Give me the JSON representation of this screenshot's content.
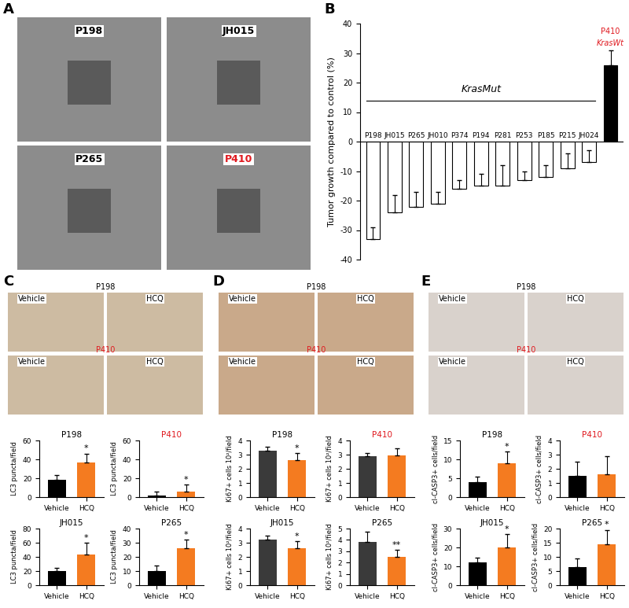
{
  "panel_labels": [
    "A",
    "B",
    "C",
    "D",
    "E"
  ],
  "images": [
    {
      "tiles": [
        "P198",
        "JH015",
        "P265",
        "P410"
      ]
    },
    {
      "rows": [
        {
          "left": "Vehicle",
          "name": "P198",
          "right": "HCQ"
        },
        {
          "left": "Vehicle",
          "name": "P410",
          "right": "HCQ"
        }
      ]
    },
    {
      "rows": [
        {
          "left": "Vehicle",
          "name": "P198",
          "right": "HCQ"
        },
        {
          "left": "Vehicle",
          "name": "P410",
          "right": "HCQ"
        }
      ]
    },
    {
      "rows": [
        {
          "left": "Vehicle",
          "name": "P198",
          "right": "HCQ"
        },
        {
          "left": "Vehicle",
          "name": "P410",
          "right": "HCQ"
        }
      ]
    }
  ],
  "chart_data": [
    {
      "type": "bar",
      "y_label": "Tumor growth compared to control (%)",
      "categories": [
        "P198",
        "JH015",
        "P265",
        "JH010",
        "P374",
        "P194",
        "P281",
        "P253",
        "P185",
        "P215",
        "JH024",
        "P410"
      ],
      "values": [
        -33,
        -24,
        -22,
        -21,
        -16,
        -15,
        -15,
        -13,
        -12,
        -9,
        -7,
        26
      ],
      "errors": [
        4,
        6,
        5,
        4,
        3,
        4,
        7,
        3,
        4,
        5,
        4,
        5
      ],
      "colors": [
        "#ffffff",
        "#ffffff",
        "#ffffff",
        "#ffffff",
        "#ffffff",
        "#ffffff",
        "#ffffff",
        "#ffffff",
        "#ffffff",
        "#ffffff",
        "#ffffff",
        "#000000"
      ],
      "ylim": [
        -40,
        40
      ],
      "yticks": [
        -40,
        -30,
        -20,
        -10,
        0,
        10,
        20,
        30,
        40
      ],
      "tick_labels": "y",
      "annotations": [
        {
          "text": "KrasMut"
        },
        {
          "text": "KrasWt"
        }
      ]
    },
    {
      "type": "bar",
      "title": "P198",
      "y_label": "LC3 puncta/field",
      "categories": [
        "Vehicle",
        "HCQ"
      ],
      "values": [
        18,
        37
      ],
      "errors": [
        5,
        9
      ],
      "colors": [
        "#000000",
        "#f47b20"
      ],
      "ylim": [
        0,
        60
      ],
      "yticks": [
        0,
        20,
        40,
        60
      ],
      "annotations": [
        {
          "text": "*",
          "category": "HCQ"
        }
      ]
    },
    {
      "type": "bar",
      "title": "P410",
      "y_label": "LC3 puncta/field",
      "categories": [
        "Vehicle",
        "HCQ"
      ],
      "values": [
        2,
        6
      ],
      "errors": [
        4,
        7
      ],
      "colors": [
        "#000000",
        "#f47b20"
      ],
      "ylim": [
        0,
        60
      ],
      "yticks": [
        0,
        20,
        40,
        60
      ],
      "annotations": [
        {
          "text": "*",
          "category": "HCQ"
        }
      ]
    },
    {
      "type": "bar",
      "title": "JH015",
      "y_label": "LC3 puncta/field",
      "categories": [
        "Vehicle",
        "HCQ"
      ],
      "values": [
        20,
        43
      ],
      "errors": [
        5,
        17
      ],
      "colors": [
        "#000000",
        "#f47b20"
      ],
      "ylim": [
        0,
        80
      ],
      "yticks": [
        0,
        20,
        40,
        60,
        80
      ],
      "annotations": [
        {
          "text": "*",
          "category": "HCQ"
        }
      ]
    },
    {
      "type": "bar",
      "title": "P265",
      "y_label": "LC3 puncta/field",
      "categories": [
        "Vehicle",
        "HCQ"
      ],
      "values": [
        10,
        26
      ],
      "errors": [
        4,
        6
      ],
      "colors": [
        "#000000",
        "#f47b20"
      ],
      "ylim": [
        0,
        40
      ],
      "yticks": [
        0,
        10,
        20,
        30,
        40
      ],
      "annotations": [
        {
          "text": "*",
          "category": "HCQ"
        }
      ]
    },
    {
      "type": "bar",
      "title": "P198",
      "y_label": "Ki67+ cells 10²/field",
      "categories": [
        "Vehicle",
        "HCQ"
      ],
      "values": [
        3.3,
        2.6
      ],
      "errors": [
        0.25,
        0.5
      ],
      "colors": [
        "#3a3a3a",
        "#f47b20"
      ],
      "ylim": [
        0,
        4
      ],
      "yticks": [
        0,
        1,
        2,
        3,
        4
      ],
      "annotations": [
        {
          "text": "*",
          "category": "HCQ"
        }
      ]
    },
    {
      "type": "bar",
      "title": "P410",
      "y_label": "Ki67+ cells 10²/field",
      "categories": [
        "Vehicle",
        "HCQ"
      ],
      "values": [
        2.9,
        2.95
      ],
      "errors": [
        0.2,
        0.5
      ],
      "colors": [
        "#3a3a3a",
        "#f47b20"
      ],
      "ylim": [
        0,
        4
      ],
      "yticks": [
        0,
        1,
        2,
        3,
        4
      ]
    },
    {
      "type": "bar",
      "title": "JH015",
      "y_label": "Ki67+ cells 10²/field",
      "categories": [
        "Vehicle",
        "HCQ"
      ],
      "values": [
        3.2,
        2.6
      ],
      "errors": [
        0.3,
        0.5
      ],
      "colors": [
        "#3a3a3a",
        "#f47b20"
      ],
      "ylim": [
        0,
        4
      ],
      "yticks": [
        0,
        1,
        2,
        3,
        4
      ],
      "annotations": [
        {
          "text": "*",
          "category": "HCQ"
        }
      ]
    },
    {
      "type": "bar",
      "title": "P265",
      "y_label": "Ki67+ cells 10²/field",
      "categories": [
        "Vehicle",
        "HCQ"
      ],
      "values": [
        3.8,
        2.5
      ],
      "errors": [
        0.9,
        0.6
      ],
      "colors": [
        "#3a3a3a",
        "#f47b20"
      ],
      "ylim": [
        0,
        5
      ],
      "yticks": [
        0,
        1,
        2,
        3,
        4,
        5
      ],
      "annotations": [
        {
          "text": "**",
          "category": "HCQ"
        }
      ]
    },
    {
      "type": "bar",
      "title": "P198",
      "y_label": "cl-CASP3+ cells/field",
      "categories": [
        "Vehicle",
        "HCQ"
      ],
      "values": [
        4,
        9
      ],
      "errors": [
        1.5,
        3
      ],
      "colors": [
        "#000000",
        "#f47b20"
      ],
      "ylim": [
        0,
        15
      ],
      "yticks": [
        0,
        5,
        10,
        15
      ],
      "annotations": [
        {
          "text": "*",
          "category": "HCQ"
        }
      ]
    },
    {
      "type": "bar",
      "title": "P410",
      "y_label": "cl-CASP3+ cells/field",
      "categories": [
        "Vehicle",
        "HCQ"
      ],
      "values": [
        1.5,
        1.6
      ],
      "errors": [
        1,
        1.3
      ],
      "colors": [
        "#000000",
        "#f47b20"
      ],
      "ylim": [
        0,
        4
      ],
      "yticks": [
        0,
        1,
        2,
        3,
        4
      ]
    },
    {
      "type": "bar",
      "title": "JH015",
      "y_label": "cl-CASP3+ cells/field",
      "categories": [
        "Vehicle",
        "HCQ"
      ],
      "values": [
        12,
        20
      ],
      "errors": [
        2.5,
        7
      ],
      "colors": [
        "#000000",
        "#f47b20"
      ],
      "ylim": [
        0,
        30
      ],
      "yticks": [
        0,
        10,
        20,
        30
      ],
      "annotations": [
        {
          "text": "*",
          "category": "HCQ"
        }
      ]
    },
    {
      "type": "bar",
      "title": "P265",
      "y_label": "cl-CASP3+ cells/field",
      "categories": [
        "Vehicle",
        "HCQ"
      ],
      "values": [
        6.5,
        14.5
      ],
      "errors": [
        3,
        5
      ],
      "colors": [
        "#000000",
        "#f47b20"
      ],
      "ylim": [
        0,
        20
      ],
      "yticks": [
        0,
        5,
        10,
        15,
        20
      ],
      "annotations": [
        {
          "text": "*",
          "category": "HCQ"
        }
      ]
    }
  ]
}
